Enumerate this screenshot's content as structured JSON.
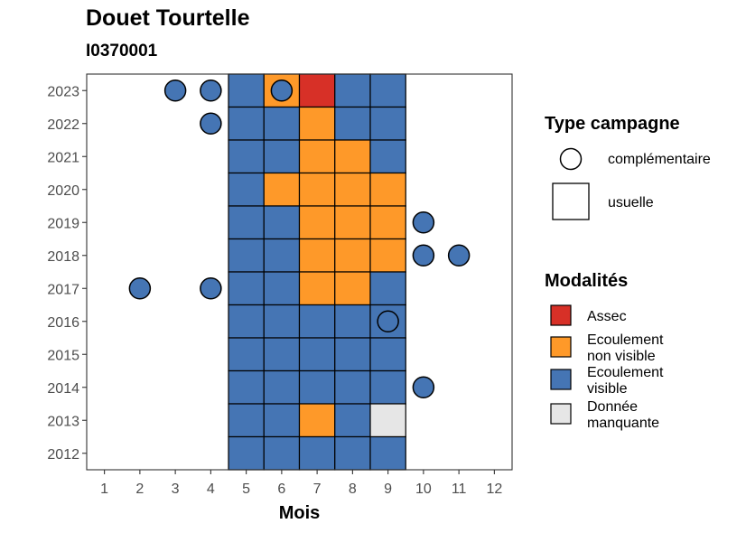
{
  "header": {
    "title": "Douet Tourtelle",
    "subtitle": "I0370001"
  },
  "chart_data": {
    "type": "heatmap",
    "title": "Douet Tourtelle",
    "subtitle": "I0370001",
    "xlabel": "Mois",
    "ylabel": "",
    "x_ticks": [
      1,
      2,
      3,
      4,
      5,
      6,
      7,
      8,
      9,
      10,
      11,
      12
    ],
    "y_ticks": [
      2012,
      2013,
      2014,
      2015,
      2016,
      2017,
      2018,
      2019,
      2020,
      2021,
      2022,
      2023
    ],
    "xlim": [
      0.5,
      12.5
    ],
    "ylim": [
      2011.5,
      2023.5
    ],
    "grid": false,
    "legend_position": "right",
    "colors": {
      "Assec": "#d73027",
      "Ecoulement non visible": "#fe9929",
      "Ecoulement visible": "#4575b4",
      "Donnée manquante": "#e6e6e6"
    },
    "usual_cells": [
      {
        "year": 2023,
        "month": 5,
        "status": "Ecoulement visible"
      },
      {
        "year": 2023,
        "month": 6,
        "status": "Ecoulement non visible"
      },
      {
        "year": 2023,
        "month": 7,
        "status": "Assec"
      },
      {
        "year": 2023,
        "month": 8,
        "status": "Ecoulement visible"
      },
      {
        "year": 2023,
        "month": 9,
        "status": "Ecoulement visible"
      },
      {
        "year": 2022,
        "month": 5,
        "status": "Ecoulement visible"
      },
      {
        "year": 2022,
        "month": 6,
        "status": "Ecoulement visible"
      },
      {
        "year": 2022,
        "month": 7,
        "status": "Ecoulement non visible"
      },
      {
        "year": 2022,
        "month": 8,
        "status": "Ecoulement visible"
      },
      {
        "year": 2022,
        "month": 9,
        "status": "Ecoulement visible"
      },
      {
        "year": 2021,
        "month": 5,
        "status": "Ecoulement visible"
      },
      {
        "year": 2021,
        "month": 6,
        "status": "Ecoulement visible"
      },
      {
        "year": 2021,
        "month": 7,
        "status": "Ecoulement non visible"
      },
      {
        "year": 2021,
        "month": 8,
        "status": "Ecoulement non visible"
      },
      {
        "year": 2021,
        "month": 9,
        "status": "Ecoulement visible"
      },
      {
        "year": 2020,
        "month": 5,
        "status": "Ecoulement visible"
      },
      {
        "year": 2020,
        "month": 6,
        "status": "Ecoulement non visible"
      },
      {
        "year": 2020,
        "month": 7,
        "status": "Ecoulement non visible"
      },
      {
        "year": 2020,
        "month": 8,
        "status": "Ecoulement non visible"
      },
      {
        "year": 2020,
        "month": 9,
        "status": "Ecoulement non visible"
      },
      {
        "year": 2019,
        "month": 5,
        "status": "Ecoulement visible"
      },
      {
        "year": 2019,
        "month": 6,
        "status": "Ecoulement visible"
      },
      {
        "year": 2019,
        "month": 7,
        "status": "Ecoulement non visible"
      },
      {
        "year": 2019,
        "month": 8,
        "status": "Ecoulement non visible"
      },
      {
        "year": 2019,
        "month": 9,
        "status": "Ecoulement non visible"
      },
      {
        "year": 2018,
        "month": 5,
        "status": "Ecoulement visible"
      },
      {
        "year": 2018,
        "month": 6,
        "status": "Ecoulement visible"
      },
      {
        "year": 2018,
        "month": 7,
        "status": "Ecoulement non visible"
      },
      {
        "year": 2018,
        "month": 8,
        "status": "Ecoulement non visible"
      },
      {
        "year": 2018,
        "month": 9,
        "status": "Ecoulement non visible"
      },
      {
        "year": 2017,
        "month": 5,
        "status": "Ecoulement visible"
      },
      {
        "year": 2017,
        "month": 6,
        "status": "Ecoulement visible"
      },
      {
        "year": 2017,
        "month": 7,
        "status": "Ecoulement non visible"
      },
      {
        "year": 2017,
        "month": 8,
        "status": "Ecoulement non visible"
      },
      {
        "year": 2017,
        "month": 9,
        "status": "Ecoulement visible"
      },
      {
        "year": 2016,
        "month": 5,
        "status": "Ecoulement visible"
      },
      {
        "year": 2016,
        "month": 6,
        "status": "Ecoulement visible"
      },
      {
        "year": 2016,
        "month": 7,
        "status": "Ecoulement visible"
      },
      {
        "year": 2016,
        "month": 8,
        "status": "Ecoulement visible"
      },
      {
        "year": 2016,
        "month": 9,
        "status": "Ecoulement visible"
      },
      {
        "year": 2015,
        "month": 5,
        "status": "Ecoulement visible"
      },
      {
        "year": 2015,
        "month": 6,
        "status": "Ecoulement visible"
      },
      {
        "year": 2015,
        "month": 7,
        "status": "Ecoulement visible"
      },
      {
        "year": 2015,
        "month": 8,
        "status": "Ecoulement visible"
      },
      {
        "year": 2015,
        "month": 9,
        "status": "Ecoulement visible"
      },
      {
        "year": 2014,
        "month": 5,
        "status": "Ecoulement visible"
      },
      {
        "year": 2014,
        "month": 6,
        "status": "Ecoulement visible"
      },
      {
        "year": 2014,
        "month": 7,
        "status": "Ecoulement visible"
      },
      {
        "year": 2014,
        "month": 8,
        "status": "Ecoulement visible"
      },
      {
        "year": 2014,
        "month": 9,
        "status": "Ecoulement visible"
      },
      {
        "year": 2013,
        "month": 5,
        "status": "Ecoulement visible"
      },
      {
        "year": 2013,
        "month": 6,
        "status": "Ecoulement visible"
      },
      {
        "year": 2013,
        "month": 7,
        "status": "Ecoulement non visible"
      },
      {
        "year": 2013,
        "month": 8,
        "status": "Ecoulement visible"
      },
      {
        "year": 2013,
        "month": 9,
        "status": "Donnée manquante"
      },
      {
        "year": 2012,
        "month": 5,
        "status": "Ecoulement visible"
      },
      {
        "year": 2012,
        "month": 6,
        "status": "Ecoulement visible"
      },
      {
        "year": 2012,
        "month": 7,
        "status": "Ecoulement visible"
      },
      {
        "year": 2012,
        "month": 8,
        "status": "Ecoulement visible"
      },
      {
        "year": 2012,
        "month": 9,
        "status": "Ecoulement visible"
      }
    ],
    "complementary_points": [
      {
        "year": 2023,
        "month": 3,
        "status": "Ecoulement visible"
      },
      {
        "year": 2023,
        "month": 4,
        "status": "Ecoulement visible"
      },
      {
        "year": 2023,
        "month": 6,
        "status": "Ecoulement visible"
      },
      {
        "year": 2022,
        "month": 4,
        "status": "Ecoulement visible"
      },
      {
        "year": 2019,
        "month": 10,
        "status": "Ecoulement visible"
      },
      {
        "year": 2018,
        "month": 10,
        "status": "Ecoulement visible"
      },
      {
        "year": 2018,
        "month": 11,
        "status": "Ecoulement visible"
      },
      {
        "year": 2017,
        "month": 2,
        "status": "Ecoulement visible"
      },
      {
        "year": 2017,
        "month": 4,
        "status": "Ecoulement visible"
      },
      {
        "year": 2016,
        "month": 9,
        "status": "Ecoulement visible"
      },
      {
        "year": 2014,
        "month": 10,
        "status": "Ecoulement visible"
      }
    ],
    "legend": {
      "type_campagne": {
        "title": "Type campagne",
        "items": [
          {
            "shape": "circle",
            "label": "complémentaire"
          },
          {
            "shape": "square",
            "label": "usuelle"
          }
        ]
      },
      "modalites": {
        "title": "Modalités",
        "items": [
          {
            "key": "Assec",
            "lines": [
              "Assec"
            ]
          },
          {
            "key": "Ecoulement non visible",
            "lines": [
              "Ecoulement",
              "non visible"
            ]
          },
          {
            "key": "Ecoulement visible",
            "lines": [
              "Ecoulement",
              "visible"
            ]
          },
          {
            "key": "Donnée manquante",
            "lines": [
              "Donnée",
              "manquante"
            ]
          }
        ]
      }
    }
  }
}
